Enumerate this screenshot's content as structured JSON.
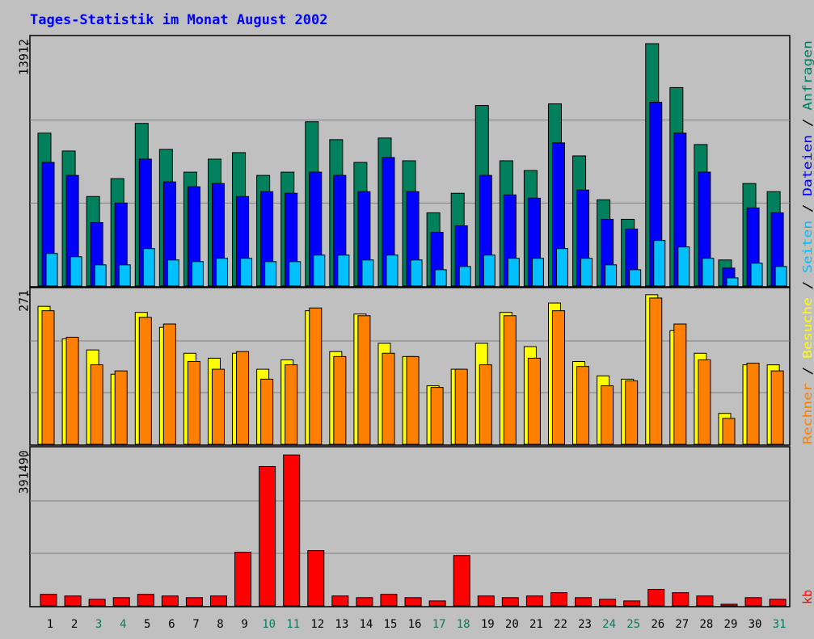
{
  "chart_data": {
    "type": "bar",
    "title": "Tages-Statistik im Monat August 2002",
    "categories": [
      "1",
      "2",
      "3",
      "4",
      "5",
      "6",
      "7",
      "8",
      "9",
      "10",
      "11",
      "12",
      "13",
      "14",
      "15",
      "16",
      "17",
      "18",
      "19",
      "20",
      "21",
      "22",
      "23",
      "24",
      "25",
      "26",
      "27",
      "28",
      "29",
      "30",
      "31"
    ],
    "category_colors": [
      "#000000",
      "#000000",
      "#00805c",
      "#00805c",
      "#000000",
      "#000000",
      "#000000",
      "#000000",
      "#000000",
      "#00805c",
      "#00805c",
      "#000000",
      "#000000",
      "#000000",
      "#000000",
      "#000000",
      "#00805c",
      "#00805c",
      "#000000",
      "#000000",
      "#000000",
      "#000000",
      "#000000",
      "#00805c",
      "#00805c",
      "#000000",
      "#000000",
      "#000000",
      "#000000",
      "#000000",
      "#00805c"
    ],
    "legend_separator": "/",
    "grid": true,
    "panels": [
      {
        "ylim": [
          0,
          14285
        ],
        "yticks": [
          13912
        ],
        "series": [
          {
            "name": "Anfragen",
            "color": "#00805c",
            "values": [
              8776,
              7749,
              5135,
              6162,
              9336,
              7842,
              6535,
              7282,
              7656,
              6348,
              6535,
              9429,
              8402,
              7095,
              8496,
              7189,
              4201,
              5322,
              10363,
              7189,
              6629,
              10456,
              7469,
              4948,
              3828,
              13912,
              11390,
              8122,
              1494,
              5882,
              5415
            ]
          },
          {
            "name": "Dateien",
            "color": "#0000ff",
            "values": [
              7095,
              6348,
              3641,
              4761,
              7282,
              5975,
              5695,
              5882,
              5135,
              5415,
              5322,
              6535,
              6348,
              5415,
              7375,
              5415,
              3081,
              3454,
              6348,
              5228,
              5041,
              8216,
              5508,
              3828,
              3268,
              10550,
              8776,
              6535,
              1027,
              4481,
              4201
            ]
          },
          {
            "name": "Seiten",
            "color": "#00c0ff",
            "values": [
              1867,
              1680,
              1214,
              1214,
              2147,
              1494,
              1400,
              1587,
              1587,
              1400,
              1400,
              1774,
              1774,
              1494,
              1774,
              1494,
              934,
              1120,
              1774,
              1587,
              1587,
              2147,
              1587,
              1214,
              934,
              2614,
              2241,
              1587,
              467,
              1307,
              1120
            ]
          }
        ]
      },
      {
        "ylim": [
          0,
          281
        ],
        "yticks": [
          271
        ],
        "series": [
          {
            "name": "Besuche",
            "color": "#ffff00",
            "values": [
              250,
              191,
              171,
              127,
              239,
              212,
              165,
              156,
              165,
              136,
              153,
              242,
              168,
              236,
              183,
              159,
              106,
              136,
              183,
              239,
              177,
              256,
              150,
              124,
              118,
              271,
              206,
              165,
              56,
              144,
              144
            ]
          },
          {
            "name": "Rechner",
            "color": "#ff8000",
            "values": [
              242,
              194,
              144,
              133,
              230,
              218,
              150,
              136,
              168,
              118,
              144,
              247,
              159,
              233,
              165,
              159,
              103,
              136,
              144,
              233,
              156,
              242,
              141,
              106,
              115,
              265,
              218,
              153,
              47,
              147,
              133
            ]
          }
        ]
      },
      {
        "ylim": [
          0,
          408600
        ],
        "yticks": [
          391490
        ],
        "series": [
          {
            "name": "kb",
            "color": "#ff0000",
            "values": [
              29950,
              25670,
              17110,
              21390,
              29950,
              25670,
              21390,
              25670,
              139040,
              361500,
              391490,
              143310,
              25670,
              21390,
              29950,
              21390,
              12830,
              130480,
              25670,
              21390,
              25670,
              34220,
              21390,
              17110,
              12830,
              42780,
              34220,
              25670,
              4280,
              21390,
              17110
            ]
          }
        ]
      }
    ]
  }
}
